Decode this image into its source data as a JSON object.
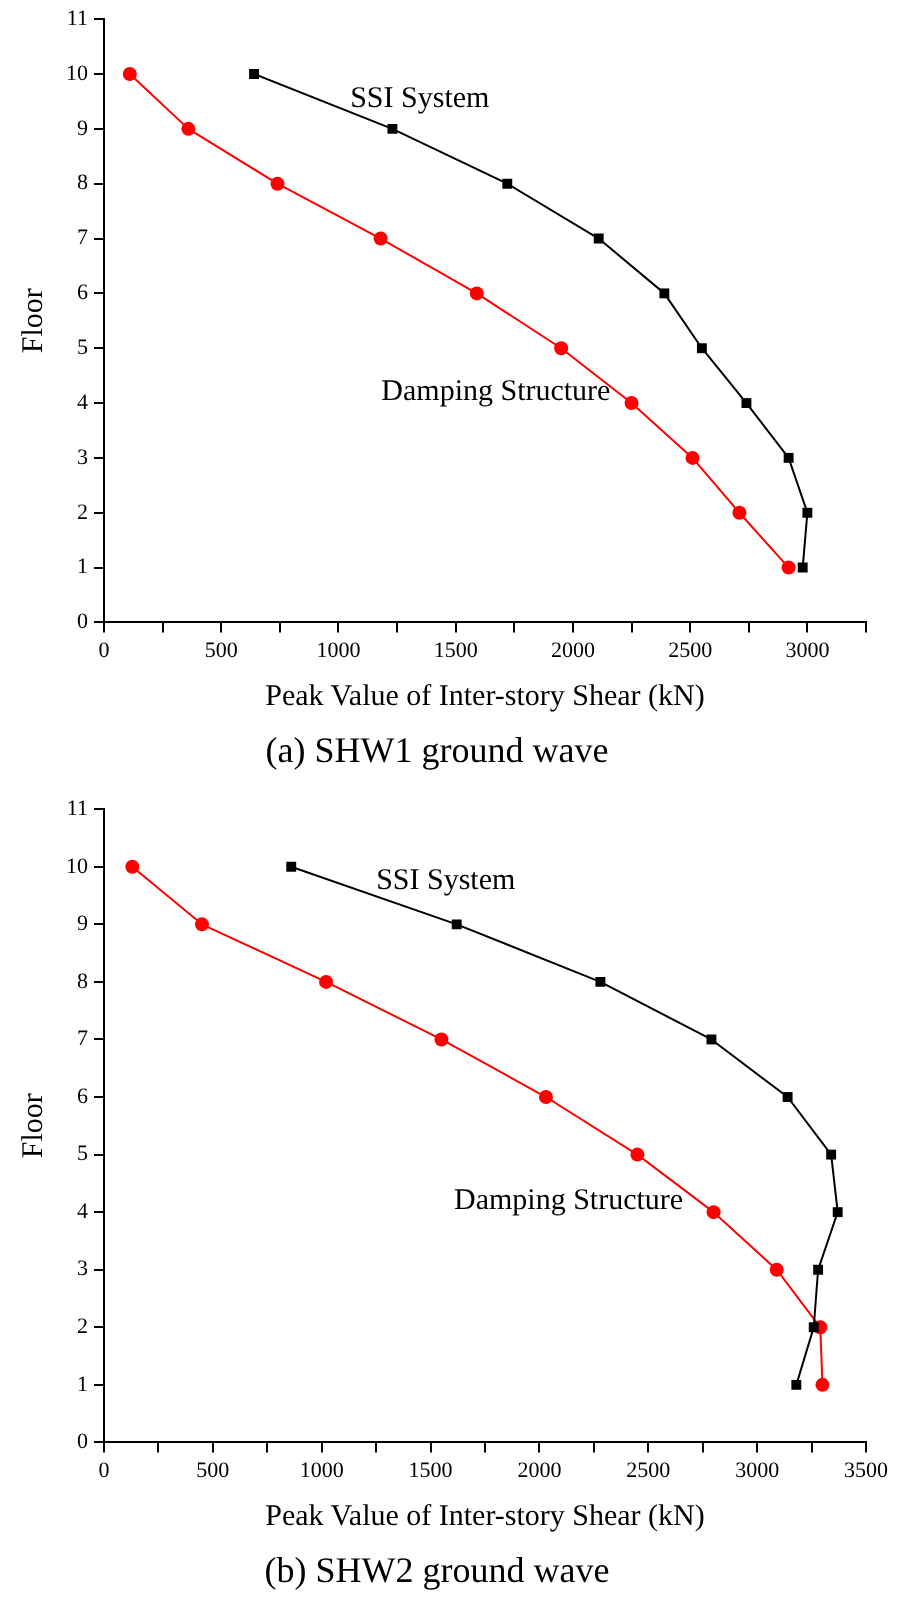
{
  "chart_data": [
    {
      "type": "line",
      "title": "(a) SHW1 ground wave",
      "xlabel": "Peak Value of Inter-story Shear (kN)",
      "ylabel": "Floor",
      "legend": false,
      "grid": false,
      "xlim": [
        0,
        3250
      ],
      "xticks": [
        0,
        {
          "value": 250,
          "label": null
        },
        500,
        {
          "value": 750,
          "label": null
        },
        1000,
        {
          "value": 1250,
          "label": null
        },
        1500,
        {
          "value": 1750,
          "label": null
        },
        2000,
        {
          "value": 2250,
          "label": null
        },
        2500,
        {
          "value": 2750,
          "label": null
        },
        3000,
        {
          "value": 3250,
          "label": null
        }
      ],
      "ylim": [
        0,
        11
      ],
      "yticks": [
        0,
        1,
        2,
        3,
        4,
        5,
        6,
        7,
        8,
        9,
        10,
        11
      ],
      "series": [
        {
          "name": "SSI System",
          "color": "#000000",
          "marker": "square",
          "x": [
            640,
            1230,
            1720,
            2110,
            2390,
            2550,
            2740,
            2920,
            3000,
            2980
          ],
          "values": [
            10,
            9,
            8,
            7,
            6,
            5,
            4,
            3,
            2,
            1
          ]
        },
        {
          "name": "Damping Structure",
          "color": "#ff0000",
          "marker": "circle",
          "x": [
            110,
            360,
            740,
            1180,
            1590,
            1950,
            2250,
            2510,
            2710,
            2920
          ],
          "values": [
            10,
            9,
            8,
            7,
            6,
            5,
            4,
            3,
            2,
            1
          ]
        }
      ]
    },
    {
      "type": "line",
      "title": "(b) SHW2 ground wave",
      "xlabel": "Peak Value of Inter-story Shear (kN)",
      "ylabel": "Floor",
      "legend": false,
      "grid": false,
      "xlim": [
        0,
        3500
      ],
      "xticks": [
        0,
        {
          "value": 250,
          "label": null
        },
        500,
        {
          "value": 750,
          "label": null
        },
        1000,
        {
          "value": 1250,
          "label": null
        },
        1500,
        {
          "value": 1750,
          "label": null
        },
        2000,
        {
          "value": 2250,
          "label": null
        },
        2500,
        {
          "value": 2750,
          "label": null
        },
        3000,
        {
          "value": 3250,
          "label": null
        },
        3500
      ],
      "ylim": [
        0,
        11
      ],
      "yticks": [
        0,
        1,
        2,
        3,
        4,
        5,
        6,
        7,
        8,
        9,
        10,
        11
      ],
      "series": [
        {
          "name": "SSI System",
          "color": "#000000",
          "marker": "square",
          "x": [
            860,
            1620,
            2280,
            2790,
            3140,
            3340,
            3370,
            3280,
            3260,
            3180
          ],
          "values": [
            10,
            9,
            8,
            7,
            6,
            5,
            4,
            3,
            2,
            1
          ]
        },
        {
          "name": "Damping Structure",
          "color": "#ff0000",
          "marker": "circle",
          "x": [
            130,
            450,
            1020,
            1550,
            2030,
            2450,
            2800,
            3090,
            3290,
            3300
          ],
          "values": [
            10,
            9,
            8,
            7,
            6,
            5,
            4,
            3,
            2,
            1
          ]
        }
      ]
    }
  ]
}
